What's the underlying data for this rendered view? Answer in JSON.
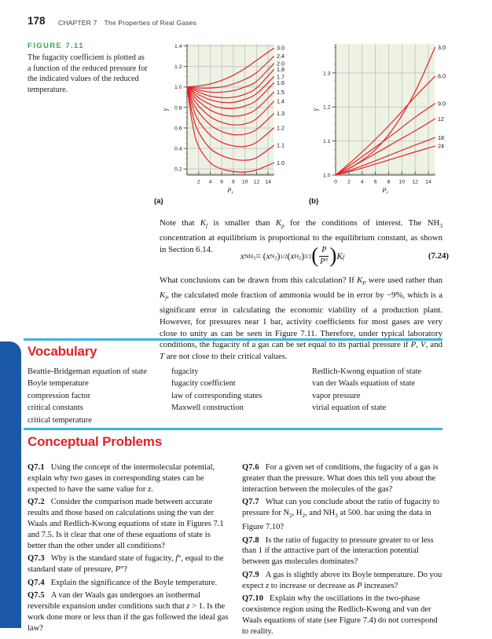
{
  "page": {
    "number": "178",
    "chapter_label": "CHAPTER 7",
    "chapter_title": "The Properties of Real Gases"
  },
  "figure": {
    "label": "FIGURE 7.11",
    "caption": "The fugacity coefficient is plotted as a function of the reduced pressure for the indicated values of the reduced temperature.",
    "panel_a_label": "(a)",
    "panel_b_label": "(b)"
  },
  "paragraphs": {
    "p1_html": "Note that <i>K</i><sub><i>f</i></sub> is smaller than <i>K</i><sub><i>p</i></sub> for the conditions of interest. The NH<sub>3</sub> concentration at equilibrium is proportional to the equilibrium constant, as shown in Section 6.14.",
    "equation_html": "<i>x</i><sub>NH<span class='ss'>3</span></sub> = (<i>x</i><sub>N<span class='ss'>2</span></sub>)<sup>1/2</sup>(<i>x</i><sub>H<span class='ss'>2</span></sub>)<sup>3/2</sup><span class='bigp'>(</span><span class='frac'><span class='num'><i>P</i></span><span class='den'><i>P</i>°</span></span><span class='bigp'>)</span><i>K</i><sub><i>f</i></sub>",
    "equation_number": "(7.24)",
    "p2_html": "What conclusions can be drawn from this calculation? If <i>K</i><sub><i>P</i></sub> were used rather than <i>K</i><sub><i>f</i></sub>, the calculated mole fraction of ammonia would be in error by −9%, which is a significant error in calculating the economic viability of a production plant. However, for pressures near 1 bar, activity coefficients for most gases are very close to unity as can be seen in Figure 7.11. Therefore, under typical laboratory conditions, the fugacity of a gas can be set equal to its partial pressure if <i>P</i>, <i>V</i>, and <i>T</i> are not close to their critical values."
  },
  "vocabulary": {
    "heading": "Vocabulary",
    "columns": [
      [
        "Beattie-Bridgeman equation of state",
        "Boyle temperature",
        "compression factor",
        "critical constants",
        "critical temperature"
      ],
      [
        "fugacity",
        "fugacity coefficient",
        "law of corresponding states",
        "Maxwell construction"
      ],
      [
        "Redlich-Kwong equation of state",
        "van der Waals equation of state",
        "vapor pressure",
        "virial equation of state"
      ]
    ]
  },
  "problems": {
    "heading": "Conceptual Problems",
    "left": [
      {
        "id": "Q7.1",
        "html": "Using the concept of the intermolecular potential, explain why two gases in corresponding states can be expected to have the same value for <i>z</i>."
      },
      {
        "id": "Q7.2",
        "html": "Consider the comparison made between accurate results and those based on calculations using the van der Waals and Redlich-Kwong equations of state in Figures 7.1 and 7.5. Is it clear that one of these equations of state is better than the other under all conditions?"
      },
      {
        "id": "Q7.3",
        "html": "Why is the standard state of fugacity, <i>f</i>°, equal to the standard state of pressure, <i>P</i>°?"
      },
      {
        "id": "Q7.4",
        "html": "Explain the significance of the Boyle temperature."
      },
      {
        "id": "Q7.5",
        "html": "A van der Waals gas undergoes an isothermal reversible expansion under conditions such that <i>z</i> &gt; 1. Is the work done more or less than if the gas followed the ideal gas law?"
      }
    ],
    "right": [
      {
        "id": "Q7.6",
        "html": "For a given set of conditions, the fugacity of a gas is greater than the pressure. What does this tell you about the interaction between the molecules of the gas?"
      },
      {
        "id": "Q7.7",
        "html": "What can you conclude about the ratio of fugacity to pressure for N<sub>2</sub>, H<sub>2</sub>, and NH<sub>3</sub> at 500. bar using the data in Figure 7.10?"
      },
      {
        "id": "Q7.8",
        "html": "Is the ratio of fugacity to pressure greater to or less than 1 if the attractive part of the interaction potential between gas molecules dominates?"
      },
      {
        "id": "Q7.9",
        "html": "A gas is slightly above its Boyle temperature. Do you expect <i>z</i> to increase or decrease as <i>P</i> increases?"
      },
      {
        "id": "Q7.10",
        "html": "Explain why the oscillations in the two-phase coexistence region using the Redlich-Kwong and van der Waals equations of state (see Figure 7.4) do not correspond to reality."
      }
    ]
  },
  "colors": {
    "accent_red": "#e12328",
    "figure_green": "#3fa54a",
    "rule_cyan": "#3ab5e6",
    "tab_blue": "#1b58a5",
    "curve_red": "#e4232b",
    "plot_bg": "#edf2e3",
    "grid": "#bdc1c8",
    "axis": "#4a4a4a"
  },
  "chart_data": [
    {
      "id": "a",
      "type": "line",
      "title": "",
      "xlabel_main": "P",
      "xlabel_sub": "r",
      "ylabel": "γ",
      "xlim": [
        0,
        15
      ],
      "ylim": [
        0.14,
        1.42
      ],
      "xticks": [
        2,
        4,
        6,
        8,
        10,
        12,
        14
      ],
      "xtick_labels": [
        "2",
        "4",
        "6",
        "8",
        "10",
        "12",
        "14"
      ],
      "ytick_vals": [
        0.2,
        0.4,
        0.6,
        0.8,
        1.0,
        1.2,
        1.4
      ],
      "ytick_labels": [
        "0.2",
        "0.4",
        "0.6",
        "0.8",
        "1.0",
        "1.2",
        "1.4"
      ],
      "xminor": 0.25,
      "yminor": 0.05,
      "grid": true,
      "legend_position": "right-end-labels",
      "series": [
        {
          "name": "3.0",
          "points": [
            [
              0,
              1.0
            ],
            [
              1,
              1.005
            ],
            [
              2,
              1.01
            ],
            [
              4,
              1.03
            ],
            [
              6,
              1.065
            ],
            [
              8,
              1.115
            ],
            [
              10,
              1.18
            ],
            [
              12,
              1.26
            ],
            [
              15,
              1.38
            ]
          ]
        },
        {
          "name": "2.4",
          "points": [
            [
              0,
              1.0
            ],
            [
              1,
              0.995
            ],
            [
              2,
              0.99
            ],
            [
              4,
              0.99
            ],
            [
              6,
              1.0
            ],
            [
              8,
              1.03
            ],
            [
              10,
              1.075
            ],
            [
              12,
              1.14
            ],
            [
              15,
              1.3
            ]
          ]
        },
        {
          "name": "2.0",
          "points": [
            [
              0,
              1.0
            ],
            [
              1,
              0.985
            ],
            [
              2,
              0.97
            ],
            [
              4,
              0.95
            ],
            [
              6,
              0.95
            ],
            [
              8,
              0.965
            ],
            [
              10,
              1.0
            ],
            [
              12,
              1.055
            ],
            [
              15,
              1.23
            ]
          ]
        },
        {
          "name": "1.8",
          "points": [
            [
              0,
              1.0
            ],
            [
              1,
              0.975
            ],
            [
              2,
              0.95
            ],
            [
              4,
              0.91
            ],
            [
              6,
              0.895
            ],
            [
              8,
              0.9
            ],
            [
              10,
              0.93
            ],
            [
              12,
              0.99
            ],
            [
              15,
              1.17
            ]
          ]
        },
        {
          "name": "1.7",
          "points": [
            [
              0,
              1.0
            ],
            [
              1,
              0.96
            ],
            [
              2,
              0.925
            ],
            [
              4,
              0.875
            ],
            [
              6,
              0.85
            ],
            [
              8,
              0.85
            ],
            [
              10,
              0.88
            ],
            [
              12,
              0.935
            ],
            [
              15,
              1.1
            ]
          ]
        },
        {
          "name": "1.6",
          "points": [
            [
              0,
              1.0
            ],
            [
              1,
              0.945
            ],
            [
              2,
              0.895
            ],
            [
              4,
              0.83
            ],
            [
              6,
              0.795
            ],
            [
              8,
              0.79
            ],
            [
              10,
              0.815
            ],
            [
              12,
              0.87
            ],
            [
              15,
              1.04
            ]
          ]
        },
        {
          "name": "1.5",
          "points": [
            [
              0,
              1.0
            ],
            [
              1,
              0.92
            ],
            [
              2,
              0.86
            ],
            [
              4,
              0.775
            ],
            [
              6,
              0.73
            ],
            [
              8,
              0.715
            ],
            [
              10,
              0.73
            ],
            [
              12,
              0.785
            ],
            [
              15,
              0.95
            ]
          ]
        },
        {
          "name": "1.4",
          "points": [
            [
              0,
              1.0
            ],
            [
              1,
              0.89
            ],
            [
              2,
              0.815
            ],
            [
              4,
              0.71
            ],
            [
              6,
              0.655
            ],
            [
              8,
              0.63
            ],
            [
              10,
              0.64
            ],
            [
              12,
              0.69
            ],
            [
              15,
              0.86
            ]
          ]
        },
        {
          "name": "1.3",
          "points": [
            [
              0,
              1.0
            ],
            [
              1,
              0.85
            ],
            [
              2,
              0.755
            ],
            [
              4,
              0.63
            ],
            [
              6,
              0.565
            ],
            [
              8,
              0.535
            ],
            [
              10,
              0.54
            ],
            [
              12,
              0.585
            ],
            [
              15,
              0.74
            ]
          ]
        },
        {
          "name": "1.2",
          "points": [
            [
              0,
              1.0
            ],
            [
              1,
              0.8
            ],
            [
              2,
              0.67
            ],
            [
              4,
              0.53
            ],
            [
              6,
              0.46
            ],
            [
              8,
              0.425
            ],
            [
              10,
              0.42
            ],
            [
              12,
              0.46
            ],
            [
              15,
              0.6
            ]
          ]
        },
        {
          "name": "1.1",
          "points": [
            [
              0,
              1.0
            ],
            [
              1,
              0.72
            ],
            [
              2,
              0.56
            ],
            [
              4,
              0.4
            ],
            [
              6,
              0.33
            ],
            [
              8,
              0.295
            ],
            [
              10,
              0.285
            ],
            [
              12,
              0.31
            ],
            [
              15,
              0.43
            ]
          ]
        },
        {
          "name": "1.0",
          "points": [
            [
              0,
              1.0
            ],
            [
              1,
              0.62
            ],
            [
              2,
              0.42
            ],
            [
              4,
              0.26
            ],
            [
              6,
              0.2
            ],
            [
              8,
              0.175
            ],
            [
              10,
              0.17
            ],
            [
              12,
              0.19
            ],
            [
              15,
              0.26
            ]
          ]
        }
      ]
    },
    {
      "id": "b",
      "type": "line",
      "title": "",
      "xlabel_main": "P",
      "xlabel_sub": "r",
      "ylabel": "γ",
      "xlim": [
        0,
        15
      ],
      "ylim": [
        1.0,
        1.385
      ],
      "xticks": [
        0,
        2,
        4,
        6,
        8,
        10,
        12,
        14
      ],
      "xtick_labels": [
        "0",
        "2",
        "4",
        "6",
        "8",
        "10",
        "12",
        "14"
      ],
      "ytick_vals": [
        1.0,
        1.1,
        1.2,
        1.3
      ],
      "ytick_labels": [
        "1.0",
        "1.1",
        "1.2",
        "1.3"
      ],
      "xminor": 0.25,
      "yminor": 0.025,
      "grid": true,
      "legend_position": "right-end-labels",
      "series": [
        {
          "name": "3.0",
          "points": [
            [
              0,
              1.0
            ],
            [
              3,
              1.03
            ],
            [
              6,
              1.075
            ],
            [
              9,
              1.145
            ],
            [
              12,
              1.245
            ],
            [
              15,
              1.375
            ]
          ]
        },
        {
          "name": "6.0",
          "points": [
            [
              0,
              1.0
            ],
            [
              3,
              1.05
            ],
            [
              6,
              1.105
            ],
            [
              9,
              1.165
            ],
            [
              12,
              1.23
            ],
            [
              15,
              1.29
            ]
          ]
        },
        {
          "name": "9.0",
          "points": [
            [
              0,
              1.0
            ],
            [
              3,
              1.04
            ],
            [
              6,
              1.082
            ],
            [
              9,
              1.125
            ],
            [
              12,
              1.17
            ],
            [
              15,
              1.21
            ]
          ]
        },
        {
          "name": "12",
          "points": [
            [
              0,
              1.0
            ],
            [
              3,
              1.03
            ],
            [
              6,
              1.063
            ],
            [
              9,
              1.097
            ],
            [
              12,
              1.13
            ],
            [
              15,
              1.165
            ]
          ]
        },
        {
          "name": "18",
          "points": [
            [
              0,
              1.0
            ],
            [
              3,
              1.02
            ],
            [
              6,
              1.042
            ],
            [
              9,
              1.065
            ],
            [
              12,
              1.088
            ],
            [
              15,
              1.11
            ]
          ]
        },
        {
          "name": "24",
          "points": [
            [
              0,
              1.0
            ],
            [
              3,
              1.015
            ],
            [
              6,
              1.032
            ],
            [
              9,
              1.05
            ],
            [
              12,
              1.068
            ],
            [
              15,
              1.085
            ]
          ]
        }
      ]
    }
  ]
}
